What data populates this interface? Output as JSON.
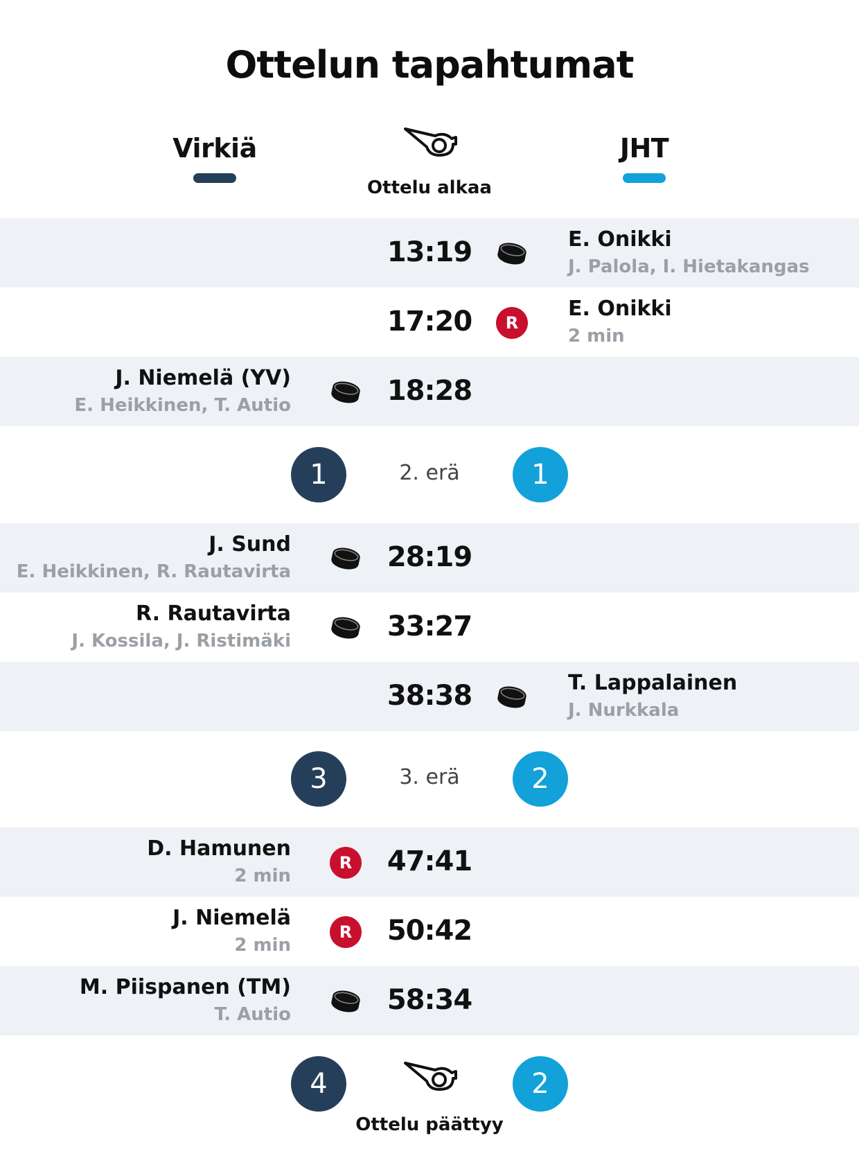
{
  "title": "Ottelun tapahtumat",
  "teams": {
    "home": {
      "name": "Virkiä",
      "color": "#253f5b"
    },
    "away": {
      "name": "JHT",
      "color": "#12a1d8"
    }
  },
  "start_label": "Ottelu alkaa",
  "end_label": "Ottelu päättyy",
  "colors": {
    "shade": "#eef1f5",
    "penalty": "#c8102e",
    "muted_text": "#9aa0a6"
  },
  "events": [
    {
      "time": "13:19",
      "type": "goal",
      "side": "away",
      "player": "E. Onikki",
      "detail": "J. Palola, I. Hietakangas",
      "icon": "puck-icon"
    },
    {
      "time": "17:20",
      "type": "penalty",
      "side": "away",
      "player": "E. Onikki",
      "detail": "2 min",
      "badge": "R"
    },
    {
      "time": "18:28",
      "type": "goal",
      "side": "home",
      "player": "J. Niemelä (YV)",
      "detail": "E. Heikkinen, T. Autio",
      "icon": "puck-icon"
    }
  ],
  "period2": {
    "label": "2. erä",
    "home": "1",
    "away": "1"
  },
  "events2": [
    {
      "time": "28:19",
      "type": "goal",
      "side": "home",
      "player": "J. Sund",
      "detail": "E. Heikkinen, R. Rautavirta",
      "icon": "puck-icon"
    },
    {
      "time": "33:27",
      "type": "goal",
      "side": "home",
      "player": "R. Rautavirta",
      "detail": "J. Kossila, J. Ristimäki",
      "icon": "puck-icon"
    },
    {
      "time": "38:38",
      "type": "goal",
      "side": "away",
      "player": "T. Lappalainen",
      "detail": "J. Nurkkala",
      "icon": "puck-icon"
    }
  ],
  "period3": {
    "label": "3. erä",
    "home": "3",
    "away": "2"
  },
  "events3": [
    {
      "time": "47:41",
      "type": "penalty",
      "side": "home",
      "player": "D. Hamunen",
      "detail": "2 min",
      "badge": "R"
    },
    {
      "time": "50:42",
      "type": "penalty",
      "side": "home",
      "player": "J. Niemelä",
      "detail": "2 min",
      "badge": "R"
    },
    {
      "time": "58:34",
      "type": "goal",
      "side": "home",
      "player": "M. Piispanen (TM)",
      "detail": "T. Autio",
      "icon": "puck-icon"
    }
  ],
  "final": {
    "home": "4",
    "away": "2"
  }
}
